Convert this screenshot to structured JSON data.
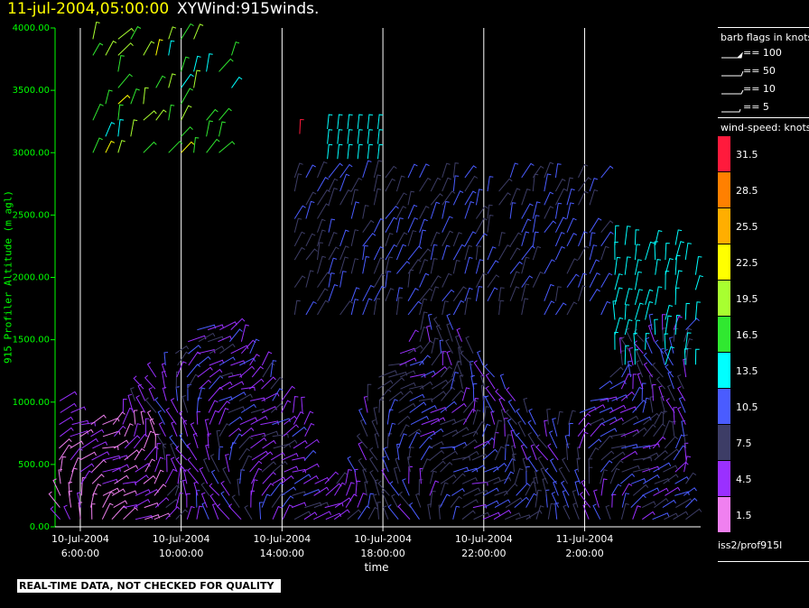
{
  "header": {
    "time_label": "11-jul-2004,05:00:00",
    "product_label": "XYWind:915winds."
  },
  "chart_data": {
    "type": "wind-barb time-height",
    "ylabel": "915 Profiler Altitude (m agl)",
    "xlabel": "time",
    "ylim": [
      0,
      4000
    ],
    "yticks": [
      "0.00",
      "500.00",
      "1000.00",
      "1500.00",
      "2000.00",
      "2500.00",
      "3000.00",
      "3500.00",
      "4000.00"
    ],
    "xticks": [
      {
        "line1": "10-Jul-2004",
        "line2": "6:00:00"
      },
      {
        "line1": "10-Jul-2004",
        "line2": "10:00:00"
      },
      {
        "line1": "10-Jul-2004",
        "line2": "14:00:00"
      },
      {
        "line1": "10-Jul-2004",
        "line2": "18:00:00"
      },
      {
        "line1": "10-Jul-2004",
        "line2": "22:00:00"
      },
      {
        "line1": "11-Jul-2004",
        "line2": "2:00:00"
      }
    ],
    "x_hours_range": [
      5,
      30.6
    ],
    "x_tick_hours": [
      6,
      10,
      14,
      18,
      22,
      26
    ],
    "grid": "vertical at time ticks",
    "speed_scale_knots": [
      {
        "value": "31.5",
        "color": "#ff1a3c"
      },
      {
        "value": "28.5",
        "color": "#ff8000"
      },
      {
        "value": "25.5",
        "color": "#ffae00"
      },
      {
        "value": "22.5",
        "color": "#ffff00"
      },
      {
        "value": "19.5",
        "color": "#a8ff30"
      },
      {
        "value": "16.5",
        "color": "#30e830"
      },
      {
        "value": "13.5",
        "color": "#00ffff"
      },
      {
        "value": "10.5",
        "color": "#4a5cff"
      },
      {
        "value": "7.5",
        "color": "#3d3d66"
      },
      {
        "value": "4.5",
        "color": "#9a30ff"
      },
      {
        "value": "1.5",
        "color": "#f080f0"
      }
    ],
    "barb_flags_knots": [
      "100",
      "50",
      "10",
      "5"
    ]
  },
  "legend": {
    "barb_title": "barb flags in knots",
    "speed_title": "wind-speed: knots",
    "flag_prefix": "== "
  },
  "source_label": "iss2/prof915l",
  "disclaimer": "REAL-TIME DATA, NOT CHECKED FOR QUALITY"
}
